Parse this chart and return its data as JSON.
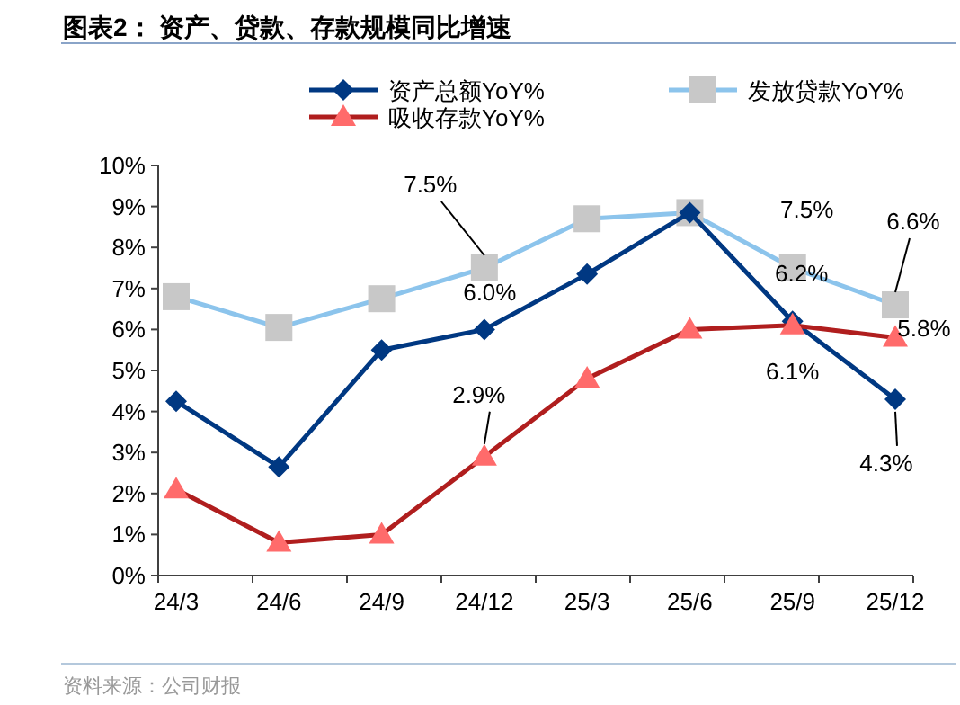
{
  "chart_data": {
    "type": "line",
    "title": "图表2：  资产、贷款、存款规模同比增速",
    "categories": [
      "24/3",
      "24/6",
      "24/9",
      "24/12",
      "25/3",
      "25/6",
      "25/9",
      "25/12"
    ],
    "series": [
      {
        "name": "资产总额YoY%",
        "color": "#003882",
        "marker": "diamond",
        "values": [
          4.25,
          2.65,
          5.5,
          6.0,
          7.35,
          8.85,
          6.2,
          4.3
        ],
        "value_labels": [
          null,
          null,
          null,
          "6.0%",
          null,
          null,
          "6.2%",
          "4.3%"
        ]
      },
      {
        "name": "发放贷款YoY%",
        "color": "#8cc4ec",
        "marker": "square",
        "values": [
          6.8,
          6.05,
          6.75,
          7.5,
          8.7,
          8.85,
          7.5,
          6.6
        ],
        "value_labels": [
          null,
          null,
          null,
          "7.5%",
          null,
          null,
          "7.5%",
          "6.6%"
        ]
      },
      {
        "name": "吸收存款YoY%",
        "color": "#b01e1e",
        "marker": "triangle",
        "values": [
          2.1,
          0.8,
          1.0,
          2.9,
          4.8,
          6.0,
          6.1,
          5.8
        ],
        "value_labels": [
          null,
          null,
          null,
          "2.9%",
          null,
          null,
          "6.1%",
          "5.8%"
        ]
      }
    ],
    "ylim": [
      0,
      10
    ],
    "yticks": [
      {
        "value": 0,
        "label": "0%"
      },
      {
        "value": 1,
        "label": "1%"
      },
      {
        "value": 2,
        "label": "2%"
      },
      {
        "value": 3,
        "label": "3%"
      },
      {
        "value": 4,
        "label": "4%"
      },
      {
        "value": 5,
        "label": "5%"
      },
      {
        "value": 6,
        "label": "6%"
      },
      {
        "value": 7,
        "label": "7%"
      },
      {
        "value": 8,
        "label": "8%"
      },
      {
        "value": 9,
        "label": "9%"
      },
      {
        "value": 10,
        "label": "10%"
      }
    ],
    "grid": false,
    "legend": "top",
    "annotations": [
      "资料来源：公司财报"
    ]
  }
}
